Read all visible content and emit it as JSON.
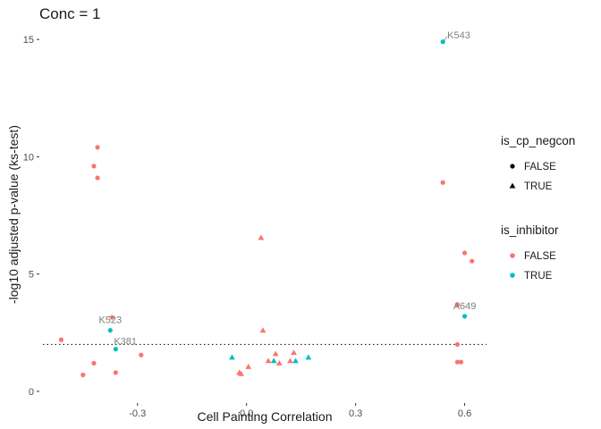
{
  "chart_data": {
    "type": "scatter",
    "title": "Conc = 1",
    "xlabel": "Cell Painting Correlation",
    "ylabel": "-log10 adjusted p-value (ks-test)",
    "xlim": [
      -0.57,
      0.67
    ],
    "ylim": [
      -0.5,
      15.5
    ],
    "xticks": [
      -0.3,
      0.0,
      0.3,
      0.6
    ],
    "xtick_labels": [
      "-0.3",
      "0.0",
      "0.3",
      "0.6"
    ],
    "yticks": [
      0,
      5,
      10,
      15
    ],
    "ytick_labels": [
      "0",
      "5",
      "10",
      "15"
    ],
    "grid": false,
    "threshold_line": {
      "y": 2.0,
      "style": "dotted"
    },
    "colors": {
      "FALSE": "#F8766D",
      "TRUE": "#00BFC4",
      "annotation": "#7f7f7f",
      "threshold": "#000000"
    },
    "legend": [
      {
        "title": "is_cp_negcon",
        "kind": "shape",
        "items": [
          {
            "label": "FALSE",
            "shape": "circle"
          },
          {
            "label": "TRUE",
            "shape": "triangle"
          }
        ]
      },
      {
        "title": "is_inhibitor",
        "kind": "color",
        "items": [
          {
            "label": "FALSE",
            "color": "#F8766D"
          },
          {
            "label": "TRUE",
            "color": "#00BFC4"
          }
        ]
      }
    ],
    "points": [
      {
        "x": 0.54,
        "y": 14.9,
        "negcon": false,
        "inhibitor": true,
        "label": "K543"
      },
      {
        "x": -0.41,
        "y": 10.4,
        "negcon": false,
        "inhibitor": false
      },
      {
        "x": -0.42,
        "y": 9.6,
        "negcon": false,
        "inhibitor": false
      },
      {
        "x": -0.41,
        "y": 9.1,
        "negcon": false,
        "inhibitor": false
      },
      {
        "x": 0.54,
        "y": 8.9,
        "negcon": false,
        "inhibitor": false
      },
      {
        "x": 0.04,
        "y": 6.55,
        "negcon": true,
        "inhibitor": false
      },
      {
        "x": 0.6,
        "y": 5.9,
        "negcon": false,
        "inhibitor": false
      },
      {
        "x": 0.62,
        "y": 5.55,
        "negcon": false,
        "inhibitor": false
      },
      {
        "x": 0.58,
        "y": 3.7,
        "negcon": false,
        "inhibitor": false
      },
      {
        "x": 0.6,
        "y": 3.2,
        "negcon": false,
        "inhibitor": true,
        "label": "A649"
      },
      {
        "x": -0.37,
        "y": 3.15,
        "negcon": false,
        "inhibitor": false
      },
      {
        "x": -0.375,
        "y": 2.6,
        "negcon": false,
        "inhibitor": true,
        "label": "K523"
      },
      {
        "x": 0.045,
        "y": 2.6,
        "negcon": true,
        "inhibitor": false
      },
      {
        "x": -0.51,
        "y": 2.2,
        "negcon": false,
        "inhibitor": false
      },
      {
        "x": 0.58,
        "y": 2.0,
        "negcon": false,
        "inhibitor": false
      },
      {
        "x": -0.36,
        "y": 1.8,
        "negcon": false,
        "inhibitor": true,
        "label": "K381"
      },
      {
        "x": -0.29,
        "y": 1.55,
        "negcon": false,
        "inhibitor": false
      },
      {
        "x": 0.08,
        "y": 1.6,
        "negcon": true,
        "inhibitor": false
      },
      {
        "x": 0.13,
        "y": 1.65,
        "negcon": true,
        "inhibitor": false
      },
      {
        "x": -0.04,
        "y": 1.45,
        "negcon": true,
        "inhibitor": true
      },
      {
        "x": 0.17,
        "y": 1.45,
        "negcon": true,
        "inhibitor": true
      },
      {
        "x": 0.06,
        "y": 1.3,
        "negcon": true,
        "inhibitor": false
      },
      {
        "x": 0.075,
        "y": 1.3,
        "negcon": true,
        "inhibitor": true
      },
      {
        "x": 0.12,
        "y": 1.3,
        "negcon": true,
        "inhibitor": false
      },
      {
        "x": 0.135,
        "y": 1.3,
        "negcon": true,
        "inhibitor": true
      },
      {
        "x": 0.09,
        "y": 1.2,
        "negcon": true,
        "inhibitor": false
      },
      {
        "x": 0.58,
        "y": 1.25,
        "negcon": false,
        "inhibitor": false
      },
      {
        "x": 0.59,
        "y": 1.25,
        "negcon": false,
        "inhibitor": false
      },
      {
        "x": -0.42,
        "y": 1.2,
        "negcon": false,
        "inhibitor": false
      },
      {
        "x": 0.005,
        "y": 1.05,
        "negcon": true,
        "inhibitor": false
      },
      {
        "x": -0.02,
        "y": 0.8,
        "negcon": true,
        "inhibitor": false
      },
      {
        "x": -0.015,
        "y": 0.75,
        "negcon": true,
        "inhibitor": false
      },
      {
        "x": -0.36,
        "y": 0.8,
        "negcon": false,
        "inhibitor": false
      },
      {
        "x": -0.45,
        "y": 0.7,
        "negcon": false,
        "inhibitor": false
      }
    ]
  }
}
